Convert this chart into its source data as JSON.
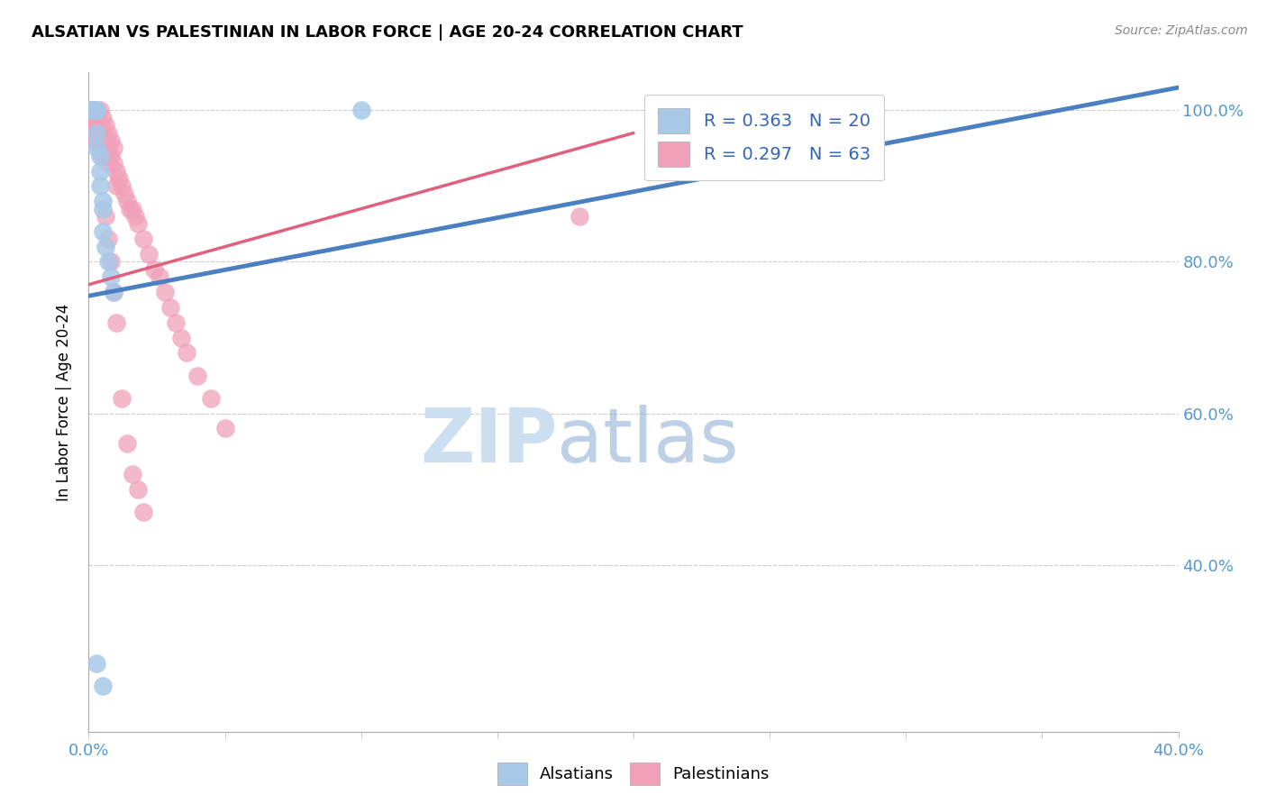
{
  "title": "ALSATIAN VS PALESTINIAN IN LABOR FORCE | AGE 20-24 CORRELATION CHART",
  "source": "Source: ZipAtlas.com",
  "ylabel": "In Labor Force | Age 20-24",
  "xlim": [
    0.0,
    0.4
  ],
  "ylim": [
    0.18,
    1.05
  ],
  "xtick_positions": [
    0.0,
    0.05,
    0.1,
    0.15,
    0.2,
    0.25,
    0.3,
    0.35,
    0.4
  ],
  "xticklabels": [
    "0.0%",
    "",
    "",
    "",
    "",
    "",
    "",
    "",
    "40.0%"
  ],
  "ytick_positions": [
    0.4,
    0.6,
    0.8,
    1.0
  ],
  "yticklabels": [
    "40.0%",
    "60.0%",
    "80.0%",
    "100.0%"
  ],
  "alsatian_color": "#a8c8e8",
  "palestinian_color": "#f0a0b8",
  "trend_blue_color": "#4a7fc1",
  "trend_pink_color": "#e06080",
  "watermark_color": "#ccdff0",
  "tick_color": "#5599cc",
  "legend_label_color": "#3366bb",
  "alsatian_x": [
    0.001,
    0.002,
    0.002,
    0.003,
    0.003,
    0.003,
    0.003,
    0.004,
    0.004,
    0.004,
    0.005,
    0.005,
    0.005,
    0.006,
    0.007,
    0.008,
    0.009,
    0.1,
    0.003,
    0.005
  ],
  "alsatian_y": [
    1.0,
    1.0,
    1.0,
    1.0,
    1.0,
    0.97,
    0.95,
    0.94,
    0.92,
    0.9,
    0.88,
    0.87,
    0.84,
    0.82,
    0.8,
    0.78,
    0.76,
    1.0,
    0.27,
    0.24
  ],
  "palestinian_x": [
    0.001,
    0.001,
    0.001,
    0.002,
    0.002,
    0.002,
    0.002,
    0.003,
    0.003,
    0.003,
    0.003,
    0.004,
    0.004,
    0.004,
    0.004,
    0.005,
    0.005,
    0.005,
    0.005,
    0.006,
    0.006,
    0.006,
    0.007,
    0.007,
    0.007,
    0.008,
    0.008,
    0.009,
    0.009,
    0.01,
    0.01,
    0.011,
    0.012,
    0.013,
    0.014,
    0.015,
    0.016,
    0.017,
    0.018,
    0.02,
    0.022,
    0.024,
    0.026,
    0.028,
    0.03,
    0.032,
    0.034,
    0.036,
    0.04,
    0.045,
    0.05,
    0.006,
    0.007,
    0.008,
    0.009,
    0.01,
    0.012,
    0.014,
    0.016,
    0.018,
    0.02,
    0.18,
    0.22
  ],
  "palestinian_y": [
    1.0,
    0.99,
    0.98,
    1.0,
    0.99,
    0.98,
    0.97,
    1.0,
    0.99,
    0.97,
    0.96,
    1.0,
    0.98,
    0.96,
    0.95,
    0.99,
    0.97,
    0.96,
    0.94,
    0.98,
    0.96,
    0.94,
    0.97,
    0.95,
    0.93,
    0.96,
    0.94,
    0.95,
    0.93,
    0.92,
    0.9,
    0.91,
    0.9,
    0.89,
    0.88,
    0.87,
    0.87,
    0.86,
    0.85,
    0.83,
    0.81,
    0.79,
    0.78,
    0.76,
    0.74,
    0.72,
    0.7,
    0.68,
    0.65,
    0.62,
    0.58,
    0.86,
    0.83,
    0.8,
    0.76,
    0.72,
    0.62,
    0.56,
    0.52,
    0.5,
    0.47,
    0.86,
    1.0
  ],
  "blue_trend_x0": 0.0,
  "blue_trend_y0": 0.755,
  "blue_trend_x1": 0.4,
  "blue_trend_y1": 1.03,
  "pink_trend_x0": 0.0,
  "pink_trend_y0": 0.77,
  "pink_trend_x1": 0.2,
  "pink_trend_y1": 0.97
}
